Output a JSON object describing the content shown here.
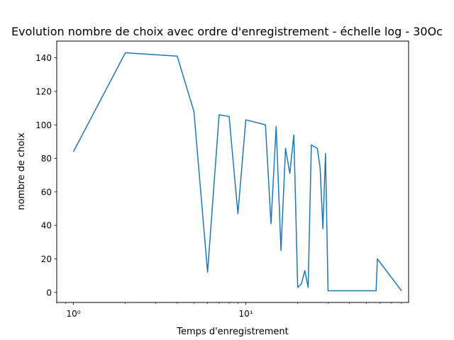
{
  "chart_data": {
    "type": "line",
    "title": "Evolution nombre de choix avec ordre d'enregistrement - échelle log - 30Oc",
    "xlabel": "Temps d'enregistrement",
    "ylabel": "nombre de choix",
    "xscale": "log",
    "xlim": [
      0.8,
      88
    ],
    "ylim": [
      -6,
      150
    ],
    "grid": false,
    "x_ticks": [
      {
        "value": 1,
        "label": "10⁰"
      },
      {
        "value": 10,
        "label": "10¹"
      }
    ],
    "y_ticks": [
      {
        "value": 0,
        "label": "0"
      },
      {
        "value": 20,
        "label": "20"
      },
      {
        "value": 40,
        "label": "40"
      },
      {
        "value": 60,
        "label": "60"
      },
      {
        "value": 80,
        "label": "80"
      },
      {
        "value": 100,
        "label": "100"
      },
      {
        "value": 120,
        "label": "120"
      },
      {
        "value": 140,
        "label": "140"
      }
    ],
    "series": [
      {
        "color": "#1f77b4",
        "x": [
          1,
          2,
          4,
          5,
          6,
          7,
          8,
          9,
          10,
          13,
          14,
          15,
          16,
          17,
          18,
          19,
          20,
          21,
          22,
          23,
          24,
          26,
          27,
          28,
          29,
          30,
          57,
          58,
          80
        ],
        "y": [
          84,
          143,
          141,
          108,
          12,
          106,
          105,
          47,
          103,
          100,
          41,
          99,
          25,
          86,
          71,
          94,
          3,
          5,
          13,
          3,
          88,
          86,
          74,
          38,
          83,
          1,
          1,
          20,
          1
        ]
      }
    ]
  }
}
